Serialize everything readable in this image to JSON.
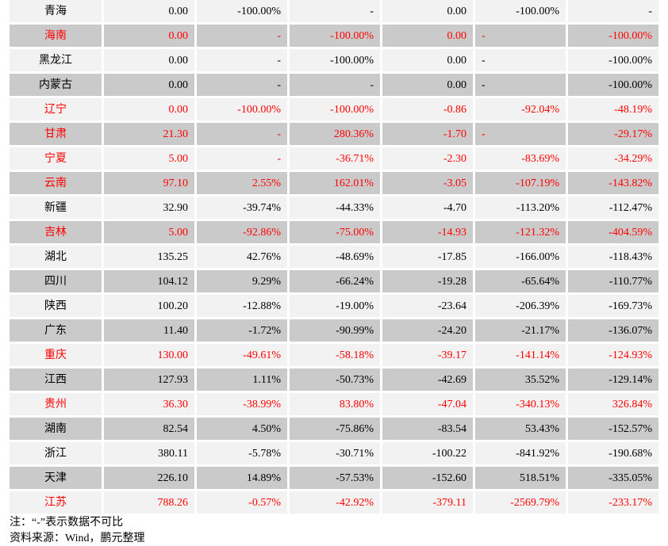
{
  "colors": {
    "highlight": "#ff0000",
    "row_light": "#f2f2f2",
    "row_dark": "#cacaca"
  },
  "rows": [
    {
      "name": "青海",
      "highlight": false,
      "values": [
        "0.00",
        "-100.00%",
        "-",
        "0.00",
        "-100.00%",
        "-"
      ]
    },
    {
      "name": "海南",
      "highlight": true,
      "values": [
        "0.00",
        "-",
        "-100.00%",
        "0.00",
        "-",
        "-100.00%"
      ]
    },
    {
      "name": "黑龙江",
      "highlight": false,
      "values": [
        "0.00",
        "-",
        "-100.00%",
        "0.00",
        "-",
        "-100.00%"
      ]
    },
    {
      "name": "内蒙古",
      "highlight": false,
      "values": [
        "0.00",
        "-",
        "-",
        "0.00",
        "-",
        "-100.00%"
      ]
    },
    {
      "name": "辽宁",
      "highlight": true,
      "values": [
        "0.00",
        "-100.00%",
        "-100.00%",
        "-0.86",
        "-92.04%",
        "-48.19%"
      ]
    },
    {
      "name": "甘肃",
      "highlight": true,
      "values": [
        "21.30",
        "-",
        "280.36%",
        "-1.70",
        "-",
        "-29.17%"
      ]
    },
    {
      "name": "宁夏",
      "highlight": true,
      "values": [
        "5.00",
        "-",
        "-36.71%",
        "-2.30",
        "-83.69%",
        "-34.29%"
      ]
    },
    {
      "name": "云南",
      "highlight": true,
      "values": [
        "97.10",
        "2.55%",
        "162.01%",
        "-3.05",
        "-107.19%",
        "-143.82%"
      ]
    },
    {
      "name": "新疆",
      "highlight": false,
      "values": [
        "32.90",
        "-39.74%",
        "-44.33%",
        "-4.70",
        "-113.20%",
        "-112.47%"
      ]
    },
    {
      "name": "吉林",
      "highlight": true,
      "values": [
        "5.00",
        "-92.86%",
        "-75.00%",
        "-14.93",
        "-121.32%",
        "-404.59%"
      ]
    },
    {
      "name": "湖北",
      "highlight": false,
      "values": [
        "135.25",
        "42.76%",
        "-48.69%",
        "-17.85",
        "-166.00%",
        "-118.43%"
      ]
    },
    {
      "name": "四川",
      "highlight": false,
      "values": [
        "104.12",
        "9.29%",
        "-66.24%",
        "-19.28",
        "-65.64%",
        "-110.77%"
      ]
    },
    {
      "name": "陕西",
      "highlight": false,
      "values": [
        "100.20",
        "-12.88%",
        "-19.00%",
        "-23.64",
        "-206.39%",
        "-169.73%"
      ]
    },
    {
      "name": "广东",
      "highlight": false,
      "values": [
        "11.40",
        "-1.72%",
        "-90.99%",
        "-24.20",
        "-21.17%",
        "-136.07%"
      ]
    },
    {
      "name": "重庆",
      "highlight": true,
      "values": [
        "130.00",
        "-49.61%",
        "-58.18%",
        "-39.17",
        "-141.14%",
        "-124.93%"
      ]
    },
    {
      "name": "江西",
      "highlight": false,
      "values": [
        "127.93",
        "1.11%",
        "-50.73%",
        "-42.69",
        "35.52%",
        "-129.14%"
      ]
    },
    {
      "name": "贵州",
      "highlight": true,
      "values": [
        "36.30",
        "-38.99%",
        "83.80%",
        "-47.04",
        "-340.13%",
        "326.84%"
      ]
    },
    {
      "name": "湖南",
      "highlight": false,
      "values": [
        "82.54",
        "4.50%",
        "-75.86%",
        "-83.54",
        "53.43%",
        "-152.57%"
      ]
    },
    {
      "name": "浙江",
      "highlight": false,
      "values": [
        "380.11",
        "-5.78%",
        "-30.71%",
        "-100.22",
        "-841.92%",
        "-190.68%"
      ]
    },
    {
      "name": "天津",
      "highlight": false,
      "values": [
        "226.10",
        "14.89%",
        "-57.53%",
        "-152.60",
        "518.51%",
        "-335.05%"
      ]
    },
    {
      "name": "江苏",
      "highlight": true,
      "values": [
        "788.26",
        "-0.57%",
        "-42.92%",
        "-379.11",
        "-2569.79%",
        "-233.17%"
      ]
    }
  ],
  "notes": {
    "note": "注：“-”表示数据不可比",
    "source": "资料来源：Wind，鹏元整理"
  }
}
